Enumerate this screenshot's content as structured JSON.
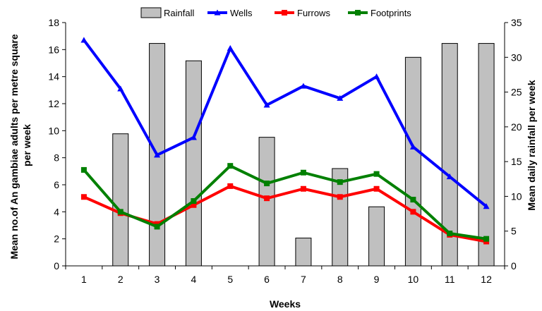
{
  "chart_data": {
    "type": "bar+line",
    "categories": [
      "1",
      "2",
      "3",
      "4",
      "5",
      "6",
      "7",
      "8",
      "9",
      "10",
      "11",
      "12"
    ],
    "xlabel": "Weeks",
    "ylabel_left": "Mean no.of An gambiae adults per metre square per week",
    "ylabel_left_lines": [
      "Mean no.of An gambiae adults per metre square",
      "per week"
    ],
    "ylabel_right": "Mean daily rainfall per week",
    "ylim_left": [
      0,
      18
    ],
    "yticks_left": [
      0,
      2,
      4,
      6,
      8,
      10,
      12,
      14,
      16,
      18
    ],
    "ylim_right": [
      0,
      35
    ],
    "yticks_right": [
      0,
      5,
      10,
      15,
      20,
      25,
      30,
      35
    ],
    "grid": false,
    "legend_position": "top",
    "bars": {
      "name": "Rainfall",
      "axis": "right",
      "color": "#c0c0c0",
      "values": [
        0,
        19,
        32,
        29.5,
        0,
        18.5,
        4,
        14,
        8.5,
        30,
        32,
        32
      ]
    },
    "series": [
      {
        "name": "Wells",
        "axis": "left",
        "color": "#0000ff",
        "marker": "triangle",
        "values": [
          16.7,
          13.1,
          8.2,
          9.5,
          16.1,
          11.9,
          13.3,
          12.4,
          14.0,
          8.8,
          6.6,
          4.4
        ]
      },
      {
        "name": "Furrows",
        "axis": "left",
        "color": "#ff0000",
        "marker": "square",
        "values": [
          5.1,
          3.9,
          3.1,
          4.5,
          5.9,
          5.0,
          5.7,
          5.1,
          5.7,
          4.0,
          2.3,
          1.8
        ]
      },
      {
        "name": "Footprints",
        "axis": "left",
        "color": "#008000",
        "marker": "square",
        "values": [
          7.1,
          4.0,
          2.9,
          4.8,
          7.4,
          6.1,
          6.9,
          6.2,
          6.8,
          4.9,
          2.4,
          2.0
        ]
      }
    ]
  }
}
